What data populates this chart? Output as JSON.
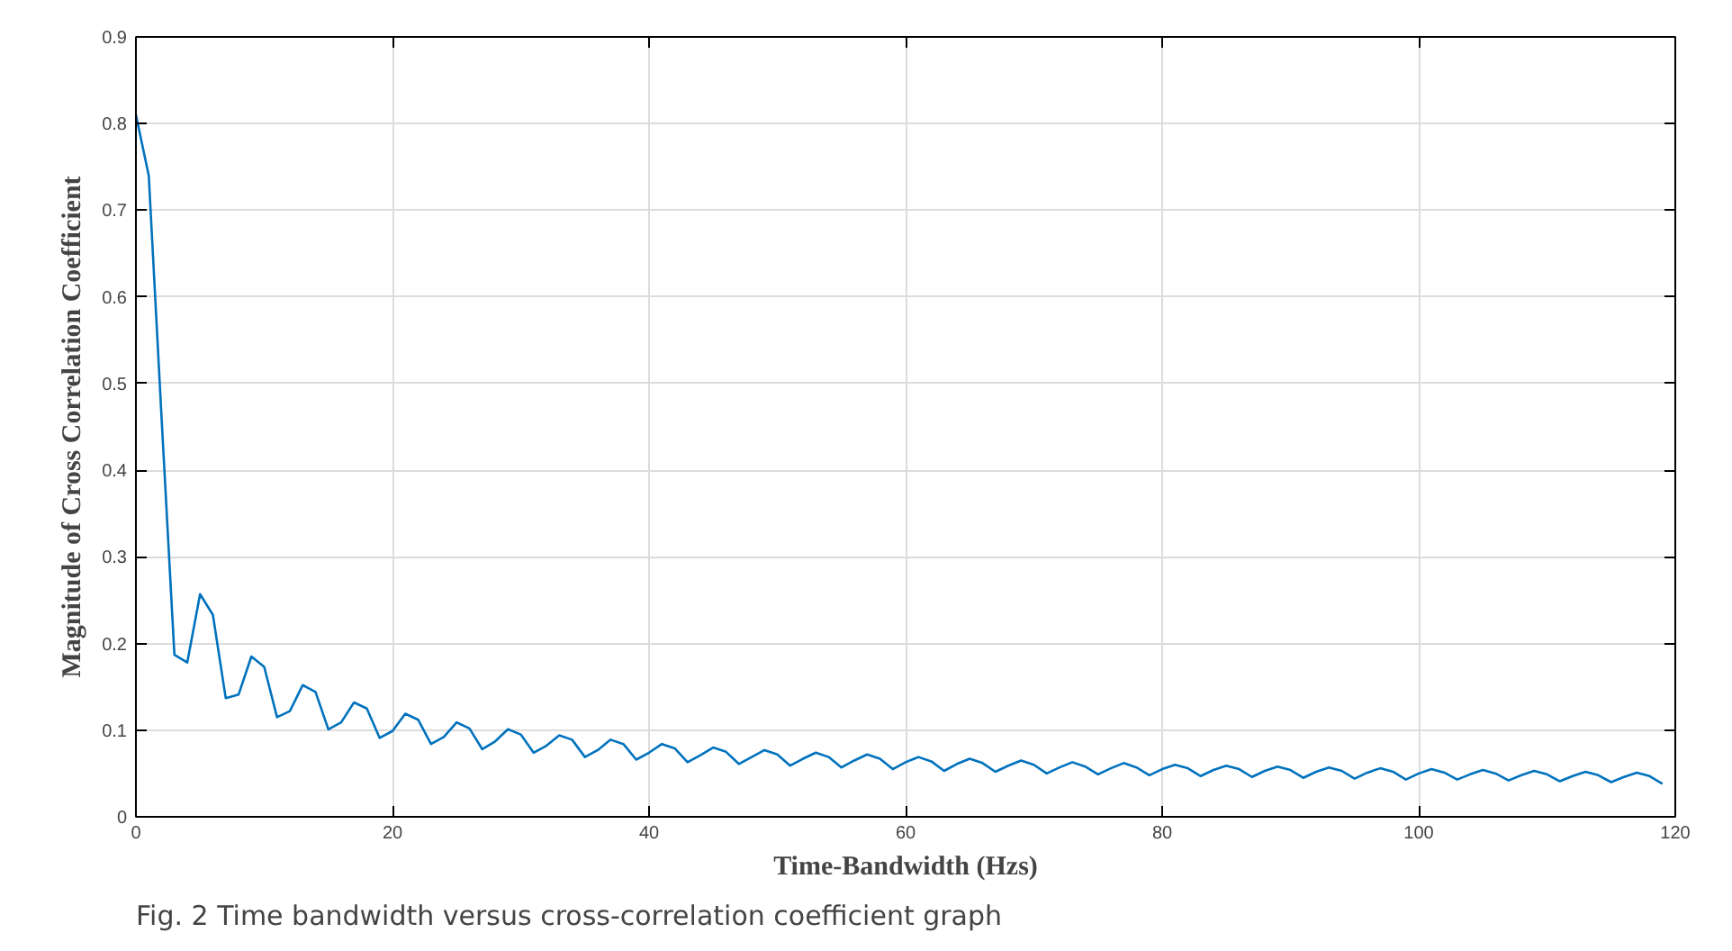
{
  "chart_data": {
    "type": "line",
    "xlabel": "Time-Bandwidth (Hzs)",
    "ylabel": "Magnitude of Cross Correlation Coefficient",
    "annotations": [
      "Fig. 2  Time bandwidth versus cross-correlation coefficient graph"
    ],
    "xlim": [
      0,
      120
    ],
    "ylim": [
      0,
      0.9
    ],
    "xticks": [
      0,
      20,
      40,
      60,
      80,
      100,
      120
    ],
    "yticks": [
      0,
      0.1,
      0.2,
      0.3,
      0.4,
      0.5,
      0.6,
      0.7,
      0.8,
      0.9
    ],
    "grid": true,
    "x": [
      0,
      1,
      2,
      3,
      4,
      5,
      6,
      7,
      8,
      9,
      10,
      11,
      12,
      13,
      14,
      15,
      16,
      17,
      18,
      19,
      20,
      21,
      22,
      23,
      24,
      25,
      26,
      27,
      28,
      29,
      30,
      31,
      32,
      33,
      34,
      35,
      36,
      37,
      38,
      39,
      40,
      41,
      42,
      43,
      44,
      45,
      46,
      47,
      48,
      49,
      50,
      51,
      52,
      53,
      54,
      55,
      56,
      57,
      58,
      59,
      60,
      61,
      62,
      63,
      64,
      65,
      66,
      67,
      68,
      69,
      70,
      71,
      72,
      73,
      74,
      75,
      76,
      77,
      78,
      79,
      80,
      81,
      82,
      83,
      84,
      85,
      86,
      87,
      88,
      89,
      90,
      91,
      92,
      93,
      94,
      95,
      96,
      97,
      98,
      99,
      100,
      101,
      102,
      103,
      104,
      105,
      106,
      107,
      108,
      109,
      110,
      111,
      112,
      113,
      114,
      115,
      116,
      117,
      118,
      119
    ],
    "series": [
      {
        "color": "#0072bd",
        "values": [
          0.81,
          0.74,
          0.46,
          0.187,
          0.178,
          0.257,
          0.233,
          0.137,
          0.141,
          0.185,
          0.173,
          0.115,
          0.122,
          0.152,
          0.144,
          0.101,
          0.109,
          0.132,
          0.125,
          0.091,
          0.099,
          0.119,
          0.112,
          0.084,
          0.092,
          0.109,
          0.102,
          0.078,
          0.087,
          0.101,
          0.095,
          0.074,
          0.082,
          0.094,
          0.089,
          0.069,
          0.077,
          0.089,
          0.084,
          0.066,
          0.074,
          0.084,
          0.079,
          0.063,
          0.071,
          0.08,
          0.075,
          0.061,
          0.069,
          0.077,
          0.072,
          0.059,
          0.067,
          0.074,
          0.069,
          0.057,
          0.065,
          0.072,
          0.067,
          0.055,
          0.063,
          0.069,
          0.064,
          0.053,
          0.061,
          0.067,
          0.062,
          0.052,
          0.059,
          0.065,
          0.06,
          0.05,
          0.057,
          0.063,
          0.058,
          0.049,
          0.056,
          0.062,
          0.057,
          0.048,
          0.055,
          0.06,
          0.056,
          0.047,
          0.054,
          0.059,
          0.055,
          0.046,
          0.053,
          0.058,
          0.054,
          0.045,
          0.052,
          0.057,
          0.053,
          0.044,
          0.051,
          0.056,
          0.052,
          0.043,
          0.05,
          0.055,
          0.051,
          0.043,
          0.049,
          0.054,
          0.05,
          0.042,
          0.048,
          0.053,
          0.049,
          0.041,
          0.047,
          0.052,
          0.048,
          0.04,
          0.046,
          0.051,
          0.047,
          0.038
        ]
      }
    ]
  }
}
